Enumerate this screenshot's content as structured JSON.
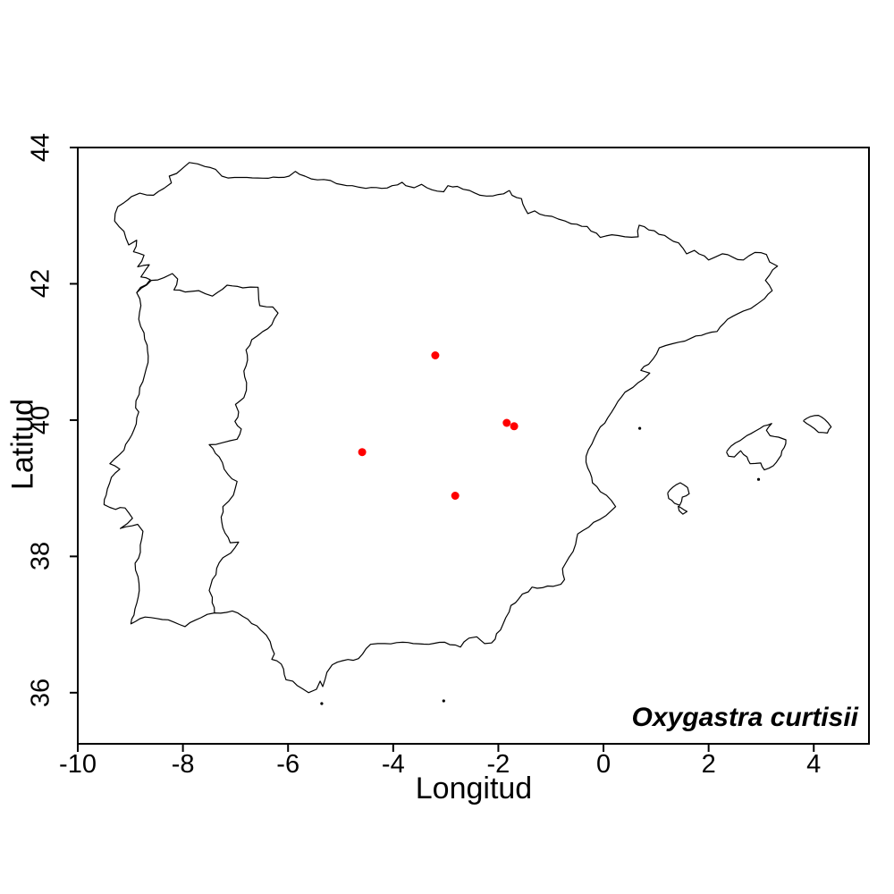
{
  "chart_data": {
    "type": "scatter",
    "subtype": "species-distribution-map",
    "xlabel": "Longitud",
    "ylabel": "Latitud",
    "annotation": "Oxygastra curtisii",
    "xlim": [
      -10,
      5.05
    ],
    "ylim": [
      35.25,
      44
    ],
    "xticks": [
      -10,
      -8,
      -6,
      -4,
      -2,
      0,
      2,
      4
    ],
    "yticks": [
      36,
      38,
      40,
      42,
      44
    ],
    "grid": false,
    "legend": null,
    "point_color": "#ff0000",
    "line_color": "#000000",
    "background": "#ffffff",
    "points": [
      {
        "lon": -3.2,
        "lat": 40.95
      },
      {
        "lon": -1.84,
        "lat": 39.96
      },
      {
        "lon": -1.7,
        "lat": 39.91
      },
      {
        "lon": -4.59,
        "lat": 39.53
      },
      {
        "lon": -2.82,
        "lat": 38.89
      }
    ],
    "outlines": {
      "iberia": [
        [
          -1.79,
          43.37
        ],
        [
          -1.9,
          43.32
        ],
        [
          -2.1,
          43.29
        ],
        [
          -2.35,
          43.3
        ],
        [
          -2.55,
          43.37
        ],
        [
          -2.78,
          43.43
        ],
        [
          -2.96,
          43.44
        ],
        [
          -3.04,
          43.35
        ],
        [
          -3.16,
          43.36
        ],
        [
          -3.36,
          43.41
        ],
        [
          -3.46,
          43.46
        ],
        [
          -3.6,
          43.41
        ],
        [
          -3.76,
          43.44
        ],
        [
          -3.83,
          43.49
        ],
        [
          -4.02,
          43.44
        ],
        [
          -4.22,
          43.4
        ],
        [
          -4.52,
          43.4
        ],
        [
          -4.78,
          43.44
        ],
        [
          -5.08,
          43.47
        ],
        [
          -5.32,
          43.53
        ],
        [
          -5.56,
          43.54
        ],
        [
          -5.68,
          43.58
        ],
        [
          -5.86,
          43.65
        ],
        [
          -5.98,
          43.58
        ],
        [
          -6.18,
          43.56
        ],
        [
          -6.48,
          43.55
        ],
        [
          -6.78,
          43.56
        ],
        [
          -7.02,
          43.56
        ],
        [
          -7.26,
          43.58
        ],
        [
          -7.38,
          43.68
        ],
        [
          -7.58,
          43.72
        ],
        [
          -7.72,
          43.76
        ],
        [
          -7.88,
          43.78
        ],
        [
          -8.0,
          43.7
        ],
        [
          -8.12,
          43.62
        ],
        [
          -8.26,
          43.58
        ],
        [
          -8.22,
          43.48
        ],
        [
          -8.36,
          43.4
        ],
        [
          -8.56,
          43.3
        ],
        [
          -8.82,
          43.33
        ],
        [
          -8.98,
          43.28
        ],
        [
          -9.12,
          43.19
        ],
        [
          -9.24,
          43.13
        ],
        [
          -9.3,
          42.92
        ],
        [
          -9.12,
          42.77
        ],
        [
          -9.03,
          42.57
        ],
        [
          -8.88,
          42.64
        ],
        [
          -8.94,
          42.47
        ],
        [
          -8.74,
          42.42
        ],
        [
          -8.86,
          42.25
        ],
        [
          -8.64,
          42.28
        ],
        [
          -8.8,
          42.1
        ],
        [
          -8.62,
          42.06
        ],
        [
          -8.88,
          41.87
        ],
        [
          -8.8,
          41.68
        ],
        [
          -8.84,
          41.48
        ],
        [
          -8.74,
          41.28
        ],
        [
          -8.68,
          41.1
        ],
        [
          -8.66,
          40.94
        ],
        [
          -8.73,
          40.66
        ],
        [
          -8.82,
          40.48
        ],
        [
          -8.9,
          40.18
        ],
        [
          -8.84,
          40.12
        ],
        [
          -8.93,
          39.86
        ],
        [
          -9.12,
          39.56
        ],
        [
          -9.39,
          39.36
        ],
        [
          -9.2,
          39.28
        ],
        [
          -9.36,
          39.16
        ],
        [
          -9.46,
          38.9
        ],
        [
          -9.5,
          38.76
        ],
        [
          -9.28,
          38.69
        ],
        [
          -9.1,
          38.71
        ],
        [
          -8.96,
          38.56
        ],
        [
          -9.06,
          38.48
        ],
        [
          -9.19,
          38.41
        ],
        [
          -8.86,
          38.47
        ],
        [
          -8.76,
          38.37
        ],
        [
          -8.81,
          38.06
        ],
        [
          -8.91,
          37.9
        ],
        [
          -8.83,
          37.5
        ],
        [
          -8.93,
          37.14
        ],
        [
          -8.99,
          37.01
        ],
        [
          -8.72,
          37.11
        ],
        [
          -8.28,
          37.07
        ],
        [
          -7.96,
          36.97
        ],
        [
          -7.66,
          37.1
        ],
        [
          -7.4,
          37.17
        ],
        [
          -7.06,
          37.2
        ],
        [
          -6.86,
          37.12
        ],
        [
          -6.52,
          36.92
        ],
        [
          -6.34,
          36.75
        ],
        [
          -6.26,
          36.57
        ],
        [
          -6.31,
          36.49
        ],
        [
          -6.13,
          36.42
        ],
        [
          -6.04,
          36.19
        ],
        [
          -5.91,
          36.17
        ],
        [
          -5.73,
          36.06
        ],
        [
          -5.61,
          36.0
        ],
        [
          -5.46,
          36.05
        ],
        [
          -5.39,
          36.17
        ],
        [
          -5.34,
          36.09
        ],
        [
          -5.26,
          36.3
        ],
        [
          -5.16,
          36.41
        ],
        [
          -4.96,
          36.47
        ],
        [
          -4.66,
          36.5
        ],
        [
          -4.43,
          36.71
        ],
        [
          -4.16,
          36.72
        ],
        [
          -3.82,
          36.74
        ],
        [
          -3.62,
          36.72
        ],
        [
          -3.32,
          36.71
        ],
        [
          -3.02,
          36.74
        ],
        [
          -2.72,
          36.67
        ],
        [
          -2.56,
          36.8
        ],
        [
          -2.41,
          36.82
        ],
        [
          -2.26,
          36.72
        ],
        [
          -2.13,
          36.73
        ],
        [
          -1.96,
          36.92
        ],
        [
          -1.86,
          37.1
        ],
        [
          -1.76,
          37.28
        ],
        [
          -1.61,
          37.38
        ],
        [
          -1.36,
          37.55
        ],
        [
          -1.16,
          37.54
        ],
        [
          -0.96,
          37.56
        ],
        [
          -0.81,
          37.59
        ],
        [
          -0.74,
          37.66
        ],
        [
          -0.78,
          37.82
        ],
        [
          -0.66,
          37.98
        ],
        [
          -0.53,
          38.18
        ],
        [
          -0.49,
          38.33
        ],
        [
          -0.39,
          38.38
        ],
        [
          -0.19,
          38.5
        ],
        [
          0.05,
          38.6
        ],
        [
          0.23,
          38.73
        ],
        [
          0.15,
          38.82
        ],
        [
          -0.06,
          38.95
        ],
        [
          -0.21,
          39.08
        ],
        [
          -0.3,
          39.3
        ],
        [
          -0.33,
          39.47
        ],
        [
          -0.22,
          39.65
        ],
        [
          -0.06,
          39.9
        ],
        [
          0.08,
          40.03
        ],
        [
          0.22,
          40.2
        ],
        [
          0.41,
          40.41
        ],
        [
          0.56,
          40.48
        ],
        [
          0.76,
          40.6
        ],
        [
          0.88,
          40.69
        ],
        [
          0.71,
          40.73
        ],
        [
          0.86,
          40.82
        ],
        [
          1.06,
          41.06
        ],
        [
          1.31,
          41.12
        ],
        [
          1.66,
          41.2
        ],
        [
          1.96,
          41.27
        ],
        [
          2.16,
          41.3
        ],
        [
          2.36,
          41.48
        ],
        [
          2.66,
          41.6
        ],
        [
          2.92,
          41.7
        ],
        [
          3.06,
          41.78
        ],
        [
          3.21,
          41.9
        ],
        [
          3.08,
          42.05
        ],
        [
          3.16,
          42.13
        ],
        [
          3.31,
          42.26
        ],
        [
          3.16,
          42.32
        ],
        [
          3.1,
          42.43
        ],
        [
          2.88,
          42.46
        ],
        [
          2.66,
          42.35
        ],
        [
          2.46,
          42.39
        ],
        [
          2.26,
          42.44
        ],
        [
          2.0,
          42.35
        ],
        [
          1.73,
          42.49
        ],
        [
          1.58,
          42.44
        ],
        [
          1.43,
          42.6
        ],
        [
          1.16,
          42.71
        ],
        [
          0.86,
          42.79
        ],
        [
          0.68,
          42.86
        ],
        [
          0.66,
          42.69
        ],
        [
          0.41,
          42.69
        ],
        [
          0.16,
          42.72
        ],
        [
          -0.06,
          42.68
        ],
        [
          -0.31,
          42.84
        ],
        [
          -0.61,
          42.88
        ],
        [
          -0.86,
          42.95
        ],
        [
          -1.11,
          43.0
        ],
        [
          -1.31,
          43.07
        ],
        [
          -1.44,
          43.03
        ],
        [
          -1.49,
          43.1
        ],
        [
          -1.56,
          43.25
        ],
        [
          -1.74,
          43.3
        ],
        [
          -1.79,
          43.37
        ]
      ],
      "portugal_spain_border": [
        [
          -8.88,
          41.87
        ],
        [
          -8.6,
          42.05
        ],
        [
          -8.36,
          42.09
        ],
        [
          -8.2,
          42.15
        ],
        [
          -8.1,
          42.07
        ],
        [
          -8.17,
          41.91
        ],
        [
          -7.96,
          41.88
        ],
        [
          -7.7,
          41.9
        ],
        [
          -7.44,
          41.82
        ],
        [
          -7.16,
          41.98
        ],
        [
          -6.86,
          41.94
        ],
        [
          -6.57,
          41.95
        ],
        [
          -6.54,
          41.68
        ],
        [
          -6.29,
          41.66
        ],
        [
          -6.19,
          41.57
        ],
        [
          -6.31,
          41.4
        ],
        [
          -6.48,
          41.3
        ],
        [
          -6.69,
          41.18
        ],
        [
          -6.8,
          41.03
        ],
        [
          -6.77,
          40.88
        ],
        [
          -6.84,
          40.72
        ],
        [
          -6.79,
          40.55
        ],
        [
          -6.84,
          40.33
        ],
        [
          -7.0,
          40.23
        ],
        [
          -6.94,
          40.12
        ],
        [
          -7.01,
          39.98
        ],
        [
          -6.89,
          39.87
        ],
        [
          -6.97,
          39.72
        ],
        [
          -7.24,
          39.67
        ],
        [
          -7.5,
          39.64
        ],
        [
          -7.31,
          39.46
        ],
        [
          -7.14,
          39.2
        ],
        [
          -6.97,
          39.1
        ],
        [
          -7.04,
          38.9
        ],
        [
          -7.24,
          38.73
        ],
        [
          -7.26,
          38.5
        ],
        [
          -7.1,
          38.2
        ],
        [
          -6.94,
          38.21
        ],
        [
          -7.09,
          38.05
        ],
        [
          -7.24,
          37.98
        ],
        [
          -7.44,
          37.66
        ],
        [
          -7.5,
          37.5
        ],
        [
          -7.44,
          37.4
        ],
        [
          -7.4,
          37.17
        ]
      ],
      "mallorca": [
        [
          2.34,
          39.53
        ],
        [
          2.43,
          39.62
        ],
        [
          2.6,
          39.7
        ],
        [
          2.8,
          39.8
        ],
        [
          2.98,
          39.88
        ],
        [
          3.13,
          39.93
        ],
        [
          3.2,
          39.95
        ],
        [
          3.1,
          39.85
        ],
        [
          3.17,
          39.77
        ],
        [
          3.33,
          39.75
        ],
        [
          3.47,
          39.71
        ],
        [
          3.44,
          39.6
        ],
        [
          3.33,
          39.43
        ],
        [
          3.23,
          39.33
        ],
        [
          3.06,
          39.27
        ],
        [
          2.99,
          39.37
        ],
        [
          2.79,
          39.36
        ],
        [
          2.73,
          39.46
        ],
        [
          2.61,
          39.55
        ],
        [
          2.49,
          39.46
        ],
        [
          2.38,
          39.47
        ],
        [
          2.34,
          39.53
        ]
      ],
      "menorca": [
        [
          3.8,
          39.99
        ],
        [
          3.93,
          40.05
        ],
        [
          4.09,
          40.07
        ],
        [
          4.21,
          40.01
        ],
        [
          4.33,
          39.9
        ],
        [
          4.26,
          39.81
        ],
        [
          4.09,
          39.82
        ],
        [
          3.93,
          39.92
        ],
        [
          3.8,
          39.99
        ]
      ],
      "ibiza": [
        [
          1.22,
          38.93
        ],
        [
          1.31,
          39.01
        ],
        [
          1.46,
          39.08
        ],
        [
          1.6,
          39.01
        ],
        [
          1.63,
          38.92
        ],
        [
          1.5,
          38.87
        ],
        [
          1.45,
          38.75
        ],
        [
          1.35,
          38.78
        ],
        [
          1.24,
          38.85
        ],
        [
          1.22,
          38.93
        ]
      ],
      "formentera": [
        [
          1.42,
          38.74
        ],
        [
          1.5,
          38.7
        ],
        [
          1.59,
          38.66
        ],
        [
          1.51,
          38.62
        ],
        [
          1.44,
          38.67
        ],
        [
          1.42,
          38.74
        ]
      ]
    },
    "islets": [
      [
        2.95,
        39.13
      ],
      [
        0.69,
        39.88
      ],
      [
        -3.04,
        35.88
      ],
      [
        -5.36,
        35.84
      ]
    ]
  }
}
